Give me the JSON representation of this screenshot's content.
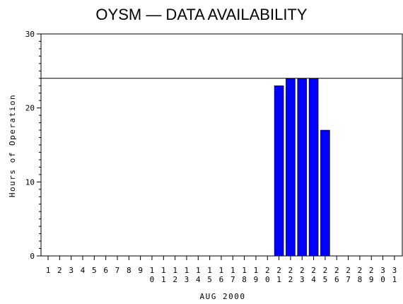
{
  "chart_data": {
    "type": "bar",
    "title": "OYSM — DATA AVAILABILITY",
    "xlabel": "AUG 2000",
    "ylabel": "Hours of Operation",
    "ylim": [
      0,
      30
    ],
    "yticks": [
      0,
      10,
      20,
      30
    ],
    "reference_line": 24,
    "bar_color": "#0000ff",
    "categories": [
      "1",
      "2",
      "3",
      "4",
      "5",
      "6",
      "7",
      "8",
      "9",
      "10",
      "11",
      "12",
      "13",
      "14",
      "15",
      "16",
      "17",
      "18",
      "19",
      "20",
      "21",
      "22",
      "23",
      "24",
      "25",
      "26",
      "27",
      "28",
      "29",
      "30",
      "31"
    ],
    "values": [
      0,
      0,
      0,
      0,
      0,
      0,
      0,
      0,
      0,
      0,
      0,
      0,
      0,
      0,
      0,
      0,
      0,
      0,
      0,
      0,
      23,
      24,
      24,
      24,
      17,
      0,
      0,
      0,
      0,
      0,
      0
    ]
  }
}
